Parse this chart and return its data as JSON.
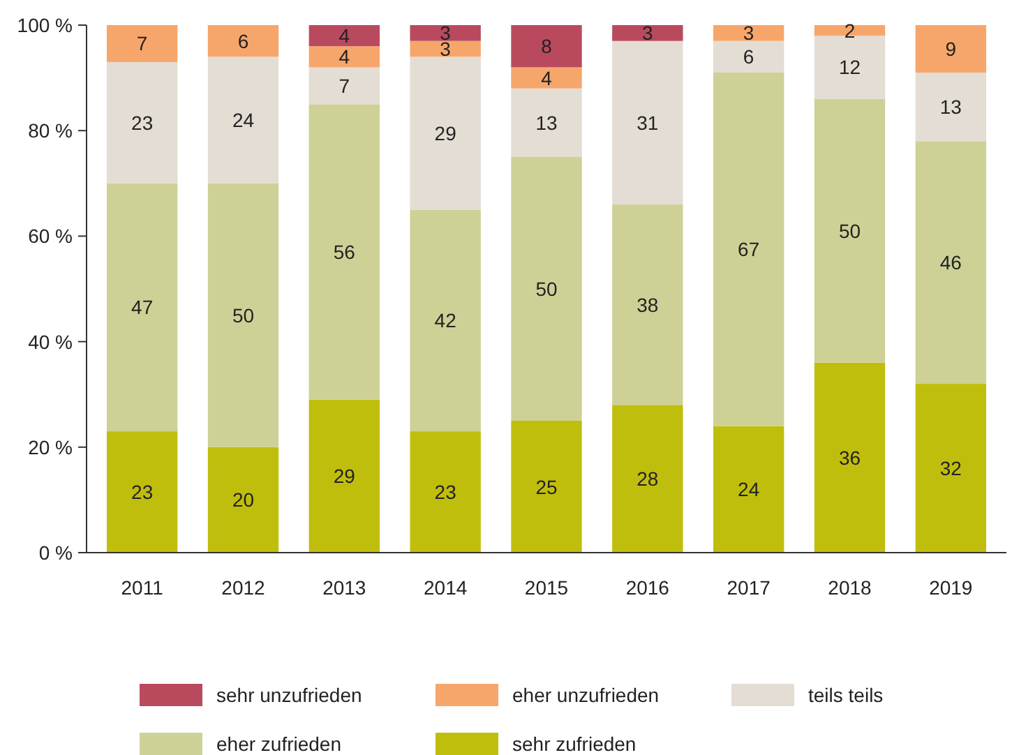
{
  "chart_data": {
    "type": "bar",
    "stacked": true,
    "categories": [
      "2011",
      "2012",
      "2013",
      "2014",
      "2015",
      "2016",
      "2017",
      "2018",
      "2019"
    ],
    "series": [
      {
        "name": "sehr zufrieden",
        "color": "#c0be0d",
        "values": [
          23,
          20,
          29,
          23,
          25,
          28,
          24,
          36,
          32
        ]
      },
      {
        "name": "eher zufrieden",
        "color": "#cdd196",
        "values": [
          47,
          50,
          56,
          42,
          50,
          38,
          67,
          50,
          46
        ]
      },
      {
        "name": "teils teils",
        "color": "#e3ddd3",
        "values": [
          23,
          24,
          7,
          29,
          13,
          31,
          6,
          12,
          13
        ]
      },
      {
        "name": "eher unzufrieden",
        "color": "#f6a66a",
        "values": [
          7,
          6,
          4,
          3,
          4,
          null,
          3,
          2,
          9
        ]
      },
      {
        "name": "sehr unzufrieden",
        "color": "#b94a5e",
        "values": [
          null,
          null,
          4,
          3,
          8,
          3,
          null,
          null,
          null
        ]
      }
    ],
    "ylim": [
      0,
      100
    ],
    "yticks": [
      {
        "value": 0,
        "label": "0 %"
      },
      {
        "value": 20,
        "label": "20 %"
      },
      {
        "value": 40,
        "label": "40 %"
      },
      {
        "value": 60,
        "label": "60 %"
      },
      {
        "value": 80,
        "label": "80 %"
      },
      {
        "value": 100,
        "label": "100 %"
      }
    ],
    "data_labels": true,
    "legend": "bottom",
    "grid": false
  }
}
